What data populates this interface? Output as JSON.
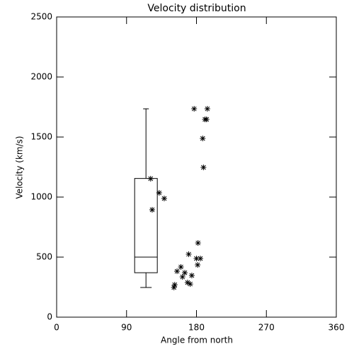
{
  "chart_data": {
    "type": "box",
    "title": "Velocity distribution",
    "xlabel": "Angle from north",
    "ylabel": "Velocity (km/s)",
    "color": "#000000",
    "xlim": [
      0,
      360
    ],
    "xticks": [
      0,
      90,
      180,
      270,
      360
    ],
    "ylim": [
      0,
      2500
    ],
    "yticks": [
      0,
      500,
      1000,
      1500,
      2000,
      2500
    ],
    "box": {
      "x": 115,
      "whisker_low": 247,
      "q1": 370,
      "median": 500,
      "q3": 1155,
      "whisker_high": 1735
    },
    "points": {
      "x": [
        121,
        123,
        132,
        138.5,
        177,
        194,
        191,
        193,
        188,
        189,
        182,
        170,
        180,
        185,
        181.5,
        160,
        155,
        165,
        162,
        174,
        168.5,
        172,
        152,
        151
      ],
      "y": [
        1153,
        894,
        1035,
        988,
        1735,
        1735,
        1647,
        1647,
        1488,
        1247,
        618,
        524,
        488,
        488,
        435,
        418,
        382,
        370,
        335,
        347,
        288,
        276,
        270,
        247
      ]
    }
  }
}
